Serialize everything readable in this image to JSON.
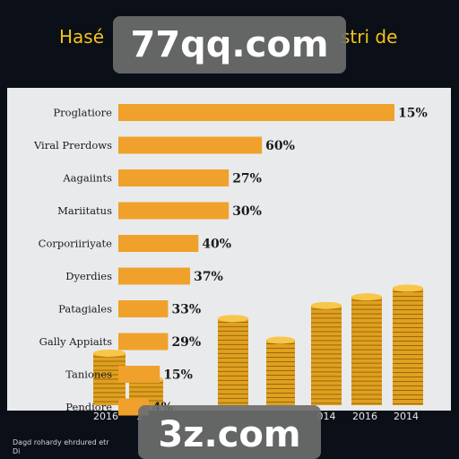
{
  "chart_data": {
    "type": "bar",
    "title_left": "Hasé",
    "title_right": "stri de",
    "categories": [
      "Proglatiore",
      "Viral Prerdows",
      "Aagaiints",
      "Mariitatus",
      "Corporiiriyate",
      "Dyerdies",
      "Patagiales",
      "Gally Appiaits",
      "Taniones",
      "Pendiore"
    ],
    "values": [
      100,
      52,
      40,
      40,
      29,
      26,
      18,
      18,
      15,
      11
    ],
    "value_labels": [
      "15%",
      "60%",
      "27%",
      "30%",
      "40%",
      "37%",
      "33%",
      "29%",
      "15%",
      "4%"
    ],
    "coin_years": [
      "2016",
      "2",
      "",
      "",
      "",
      "014",
      "2016",
      "2014"
    ],
    "coin_stack_values": [
      12,
      6,
      20,
      15,
      23,
      25,
      27
    ],
    "footnote": "Dagd rohardy ehrdured etr",
    "footnote_2": "Di",
    "colors": {
      "bar": "#f0a12b",
      "panel": "#e9eaec",
      "title": "#f2c319",
      "coin": "#e0a020"
    }
  },
  "watermarks": {
    "top": "77qq.com",
    "bottom": "3z.com"
  }
}
